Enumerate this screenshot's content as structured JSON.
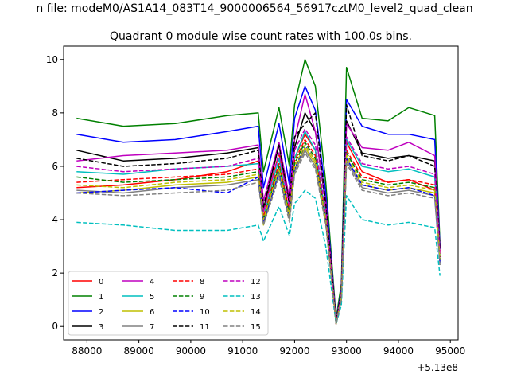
{
  "suptitle": "n file: modeM0/AS1A14_083T14_9000006564_56917cztM0_level2_quad_clean",
  "chart_data": {
    "type": "line",
    "title": "Quadrant 0 module wise count rates with 100.0s bins.",
    "xlabel": "",
    "ylabel": "",
    "x_offset_label": "+5.13e8",
    "xlim": [
      87550,
      95150
    ],
    "ylim": [
      -0.5,
      10.5
    ],
    "xticks": [
      88000,
      89000,
      90000,
      91000,
      92000,
      93000,
      94000,
      95000
    ],
    "xtick_labels": [
      "88000",
      "89000",
      "90000",
      "91000",
      "92000",
      "93000",
      "94000",
      "95000"
    ],
    "yticks": [
      0,
      2,
      4,
      6,
      8,
      10
    ],
    "ytick_labels": [
      "0",
      "2",
      "4",
      "6",
      "8",
      "10"
    ],
    "grid": false,
    "legend": "lower-left",
    "x": [
      87800,
      88700,
      89700,
      90700,
      91300,
      91400,
      91700,
      91900,
      92000,
      92200,
      92400,
      92600,
      92800,
      92900,
      93000,
      93300,
      93800,
      94200,
      94700,
      94800
    ],
    "series": [
      {
        "name": "0",
        "color": "#ff0000",
        "dash": "solid",
        "values": [
          5.2,
          5.3,
          5.5,
          5.8,
          6.2,
          4.3,
          6.5,
          4.6,
          6.3,
          7.2,
          6.6,
          4.1,
          0.1,
          1.2,
          6.9,
          5.8,
          5.4,
          5.5,
          5.1,
          2.8
        ]
      },
      {
        "name": "1",
        "color": "#008000",
        "dash": "solid",
        "values": [
          7.8,
          7.5,
          7.6,
          7.9,
          8.0,
          5.8,
          8.2,
          6.0,
          8.3,
          10.0,
          9.0,
          5.4,
          0.3,
          1.6,
          9.7,
          7.8,
          7.7,
          8.2,
          7.9,
          3.1
        ]
      },
      {
        "name": "2",
        "color": "#0000ff",
        "dash": "solid",
        "values": [
          7.2,
          6.9,
          7.0,
          7.3,
          7.5,
          5.2,
          7.6,
          5.3,
          7.8,
          9.0,
          8.1,
          5.0,
          0.2,
          1.4,
          8.5,
          7.5,
          7.2,
          7.2,
          7.0,
          3.0
        ]
      },
      {
        "name": "3",
        "color": "#000000",
        "dash": "solid",
        "values": [
          6.6,
          6.2,
          6.3,
          6.5,
          6.7,
          4.4,
          6.8,
          4.6,
          6.7,
          8.0,
          7.3,
          4.6,
          0.1,
          1.3,
          7.7,
          6.5,
          6.3,
          6.4,
          6.2,
          2.9
        ]
      },
      {
        "name": "4",
        "color": "#bf00bf",
        "dash": "solid",
        "values": [
          6.2,
          6.4,
          6.5,
          6.6,
          6.8,
          4.7,
          6.9,
          4.8,
          7.0,
          8.7,
          7.3,
          4.7,
          0.2,
          1.3,
          7.6,
          6.7,
          6.6,
          6.9,
          6.4,
          2.9
        ]
      },
      {
        "name": "5",
        "color": "#00bfbf",
        "dash": "solid",
        "values": [
          5.8,
          5.7,
          5.9,
          6.0,
          6.1,
          4.1,
          6.3,
          4.2,
          6.3,
          7.3,
          6.6,
          4.2,
          0.1,
          1.1,
          7.0,
          6.0,
          5.8,
          5.9,
          5.6,
          2.6
        ]
      },
      {
        "name": "6",
        "color": "#bfbf00",
        "dash": "solid",
        "values": [
          5.0,
          5.1,
          5.3,
          5.4,
          5.6,
          3.8,
          5.8,
          4.0,
          5.9,
          6.7,
          6.1,
          3.9,
          0.1,
          1.0,
          6.3,
          5.3,
          5.1,
          5.2,
          5.0,
          2.5
        ]
      },
      {
        "name": "7",
        "color": "#808080",
        "dash": "solid",
        "values": [
          5.1,
          5.0,
          5.2,
          5.3,
          5.5,
          3.9,
          5.7,
          4.0,
          5.8,
          6.6,
          6.0,
          3.9,
          0.1,
          1.0,
          6.2,
          5.2,
          5.0,
          5.1,
          4.9,
          2.4
        ]
      },
      {
        "name": "8",
        "color": "#ff0000",
        "dash": "dashed",
        "values": [
          5.4,
          5.5,
          5.6,
          5.7,
          5.9,
          4.1,
          6.1,
          4.3,
          6.2,
          7.0,
          6.4,
          4.1,
          0.1,
          1.2,
          6.6,
          5.6,
          5.4,
          5.5,
          5.3,
          2.6
        ]
      },
      {
        "name": "9",
        "color": "#008000",
        "dash": "dashed",
        "values": [
          5.6,
          5.4,
          5.5,
          5.6,
          5.8,
          4.0,
          6.0,
          4.2,
          6.1,
          6.9,
          6.3,
          4.0,
          0.1,
          1.1,
          6.5,
          5.5,
          5.3,
          5.4,
          5.2,
          2.5
        ]
      },
      {
        "name": "10",
        "color": "#0000ff",
        "dash": "dashed",
        "values": [
          5.0,
          5.1,
          5.2,
          5.0,
          5.6,
          3.9,
          5.8,
          4.1,
          5.9,
          6.8,
          6.2,
          4.0,
          0.1,
          1.1,
          6.3,
          5.3,
          5.1,
          5.2,
          4.9,
          2.4
        ]
      },
      {
        "name": "11",
        "color": "#000000",
        "dash": "dashed",
        "values": [
          6.3,
          6.0,
          6.1,
          6.3,
          6.6,
          4.5,
          6.8,
          4.6,
          7.1,
          7.6,
          8.0,
          4.6,
          0.2,
          1.3,
          8.3,
          6.4,
          6.2,
          6.4,
          6.0,
          2.9
        ]
      },
      {
        "name": "12",
        "color": "#bf00bf",
        "dash": "dashed",
        "values": [
          6.0,
          5.8,
          5.9,
          6.0,
          6.3,
          4.3,
          6.5,
          4.5,
          6.6,
          7.4,
          6.8,
          4.3,
          0.1,
          1.2,
          7.1,
          6.1,
          5.9,
          6.0,
          5.7,
          2.7
        ]
      },
      {
        "name": "13",
        "color": "#00bfbf",
        "dash": "dashed",
        "values": [
          3.9,
          3.8,
          3.6,
          3.6,
          3.8,
          3.2,
          4.5,
          3.4,
          4.6,
          5.1,
          4.8,
          3.0,
          0.1,
          0.8,
          4.9,
          4.0,
          3.8,
          3.9,
          3.7,
          1.9
        ]
      },
      {
        "name": "14",
        "color": "#bfbf00",
        "dash": "dashed",
        "values": [
          5.3,
          5.2,
          5.4,
          5.5,
          5.7,
          4.0,
          5.9,
          4.1,
          6.0,
          6.8,
          6.2,
          4.0,
          0.1,
          1.1,
          6.4,
          5.4,
          5.2,
          5.3,
          5.1,
          2.5
        ]
      },
      {
        "name": "15",
        "color": "#808080",
        "dash": "dashed",
        "values": [
          5.0,
          4.9,
          5.0,
          5.1,
          5.4,
          3.8,
          5.6,
          3.9,
          5.7,
          6.5,
          5.9,
          3.8,
          0.1,
          1.0,
          6.1,
          5.1,
          4.9,
          5.0,
          4.8,
          2.3
        ]
      }
    ]
  }
}
